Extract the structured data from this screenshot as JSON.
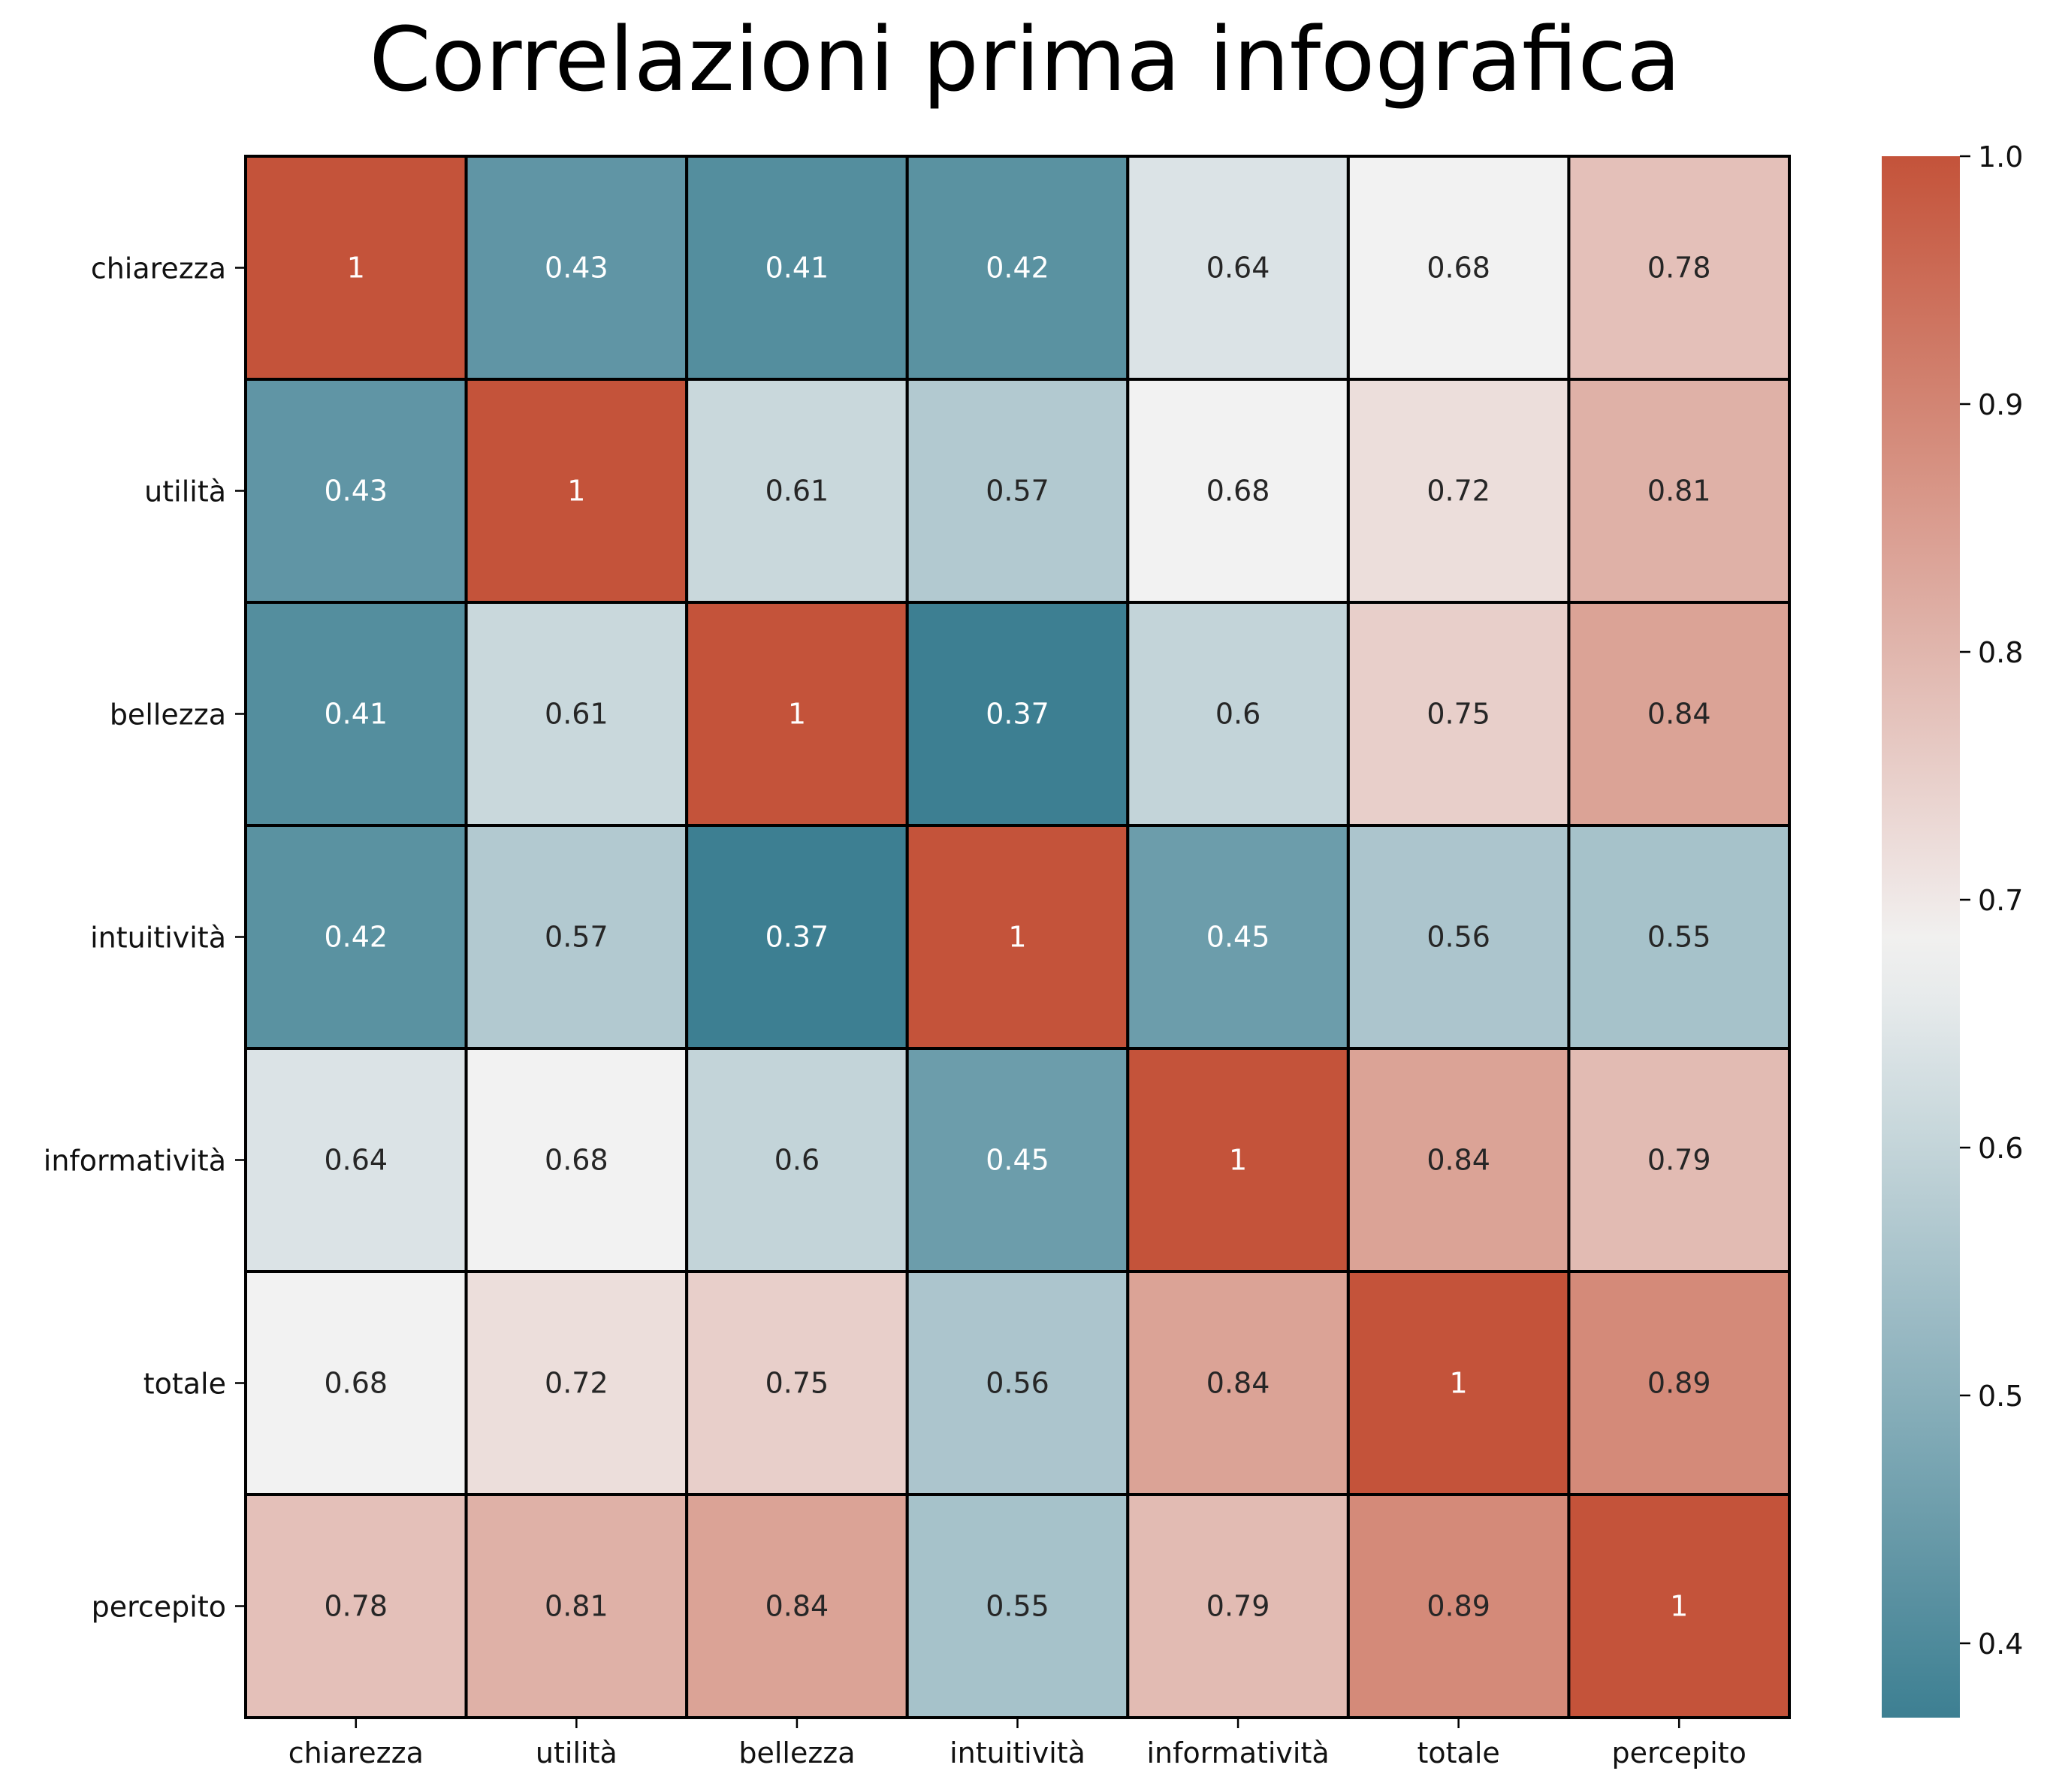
{
  "chart_data": {
    "type": "heatmap",
    "title": "Correlazioni prima infografica",
    "xlabel": "",
    "ylabel": "",
    "rows": [
      "chiarezza",
      "utilità",
      "bellezza",
      "intuitività",
      "informatività",
      "totale",
      "percepito"
    ],
    "columns": [
      "chiarezza",
      "utilità",
      "bellezza",
      "intuitività",
      "informatività",
      "totale",
      "percepito"
    ],
    "values": [
      [
        1,
        0.43,
        0.41,
        0.42,
        0.64,
        0.68,
        0.78
      ],
      [
        0.43,
        1,
        0.61,
        0.57,
        0.68,
        0.72,
        0.81
      ],
      [
        0.41,
        0.61,
        1,
        0.37,
        0.6,
        0.75,
        0.84
      ],
      [
        0.42,
        0.57,
        0.37,
        1,
        0.45,
        0.56,
        0.55
      ],
      [
        0.64,
        0.68,
        0.6,
        0.45,
        1,
        0.84,
        0.79
      ],
      [
        0.68,
        0.72,
        0.75,
        0.56,
        0.84,
        1,
        0.89
      ],
      [
        0.78,
        0.81,
        0.84,
        0.55,
        0.79,
        0.89,
        1
      ]
    ],
    "colorbar": {
      "range": [
        0.37,
        1.0
      ],
      "ticks": [
        0.4,
        0.5,
        0.6,
        0.7,
        0.8,
        0.9,
        1.0
      ],
      "tick_labels": [
        "0.4",
        "0.5",
        "0.6",
        "0.7",
        "0.8",
        "0.9",
        "1.0"
      ],
      "low_color": "#3d7f92",
      "mid_color": "#f2f2f2",
      "high_color": "#c4533a",
      "mid_value": 0.68
    },
    "grid": true,
    "legend": "colorbar right"
  }
}
